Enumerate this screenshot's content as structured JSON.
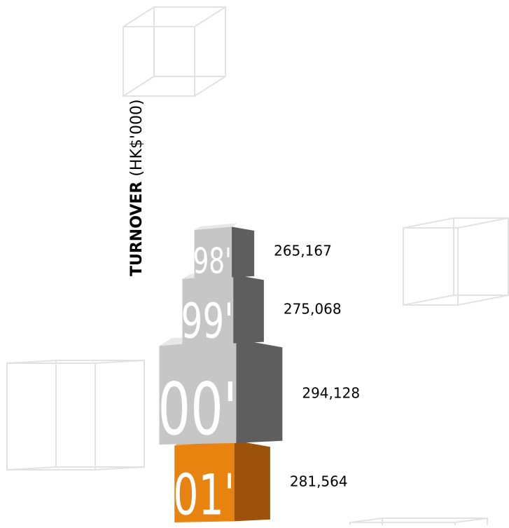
{
  "chart_data": {
    "type": "bar",
    "ylabel_bold": "TURNOVER",
    "ylabel_unit": "(HK$'000)",
    "categories": [
      "98'",
      "99'",
      "00'",
      "01'"
    ],
    "values": [
      265167,
      275068,
      294128,
      281564
    ],
    "value_labels": [
      "265,167",
      "275,068",
      "294,128",
      "281,564"
    ],
    "highlight_category": "01'"
  },
  "colors": {
    "front_grey": "#c6c6c6",
    "side_grey": "#5e5e5e",
    "top_grey": "#e8e8e8",
    "front_orange": "#e8830f",
    "side_orange": "#9c520b",
    "top_orange": "#f0a24a",
    "year_text": "#ffffff",
    "value_text": "#000000",
    "deco_stroke": "#e2e2e2"
  }
}
